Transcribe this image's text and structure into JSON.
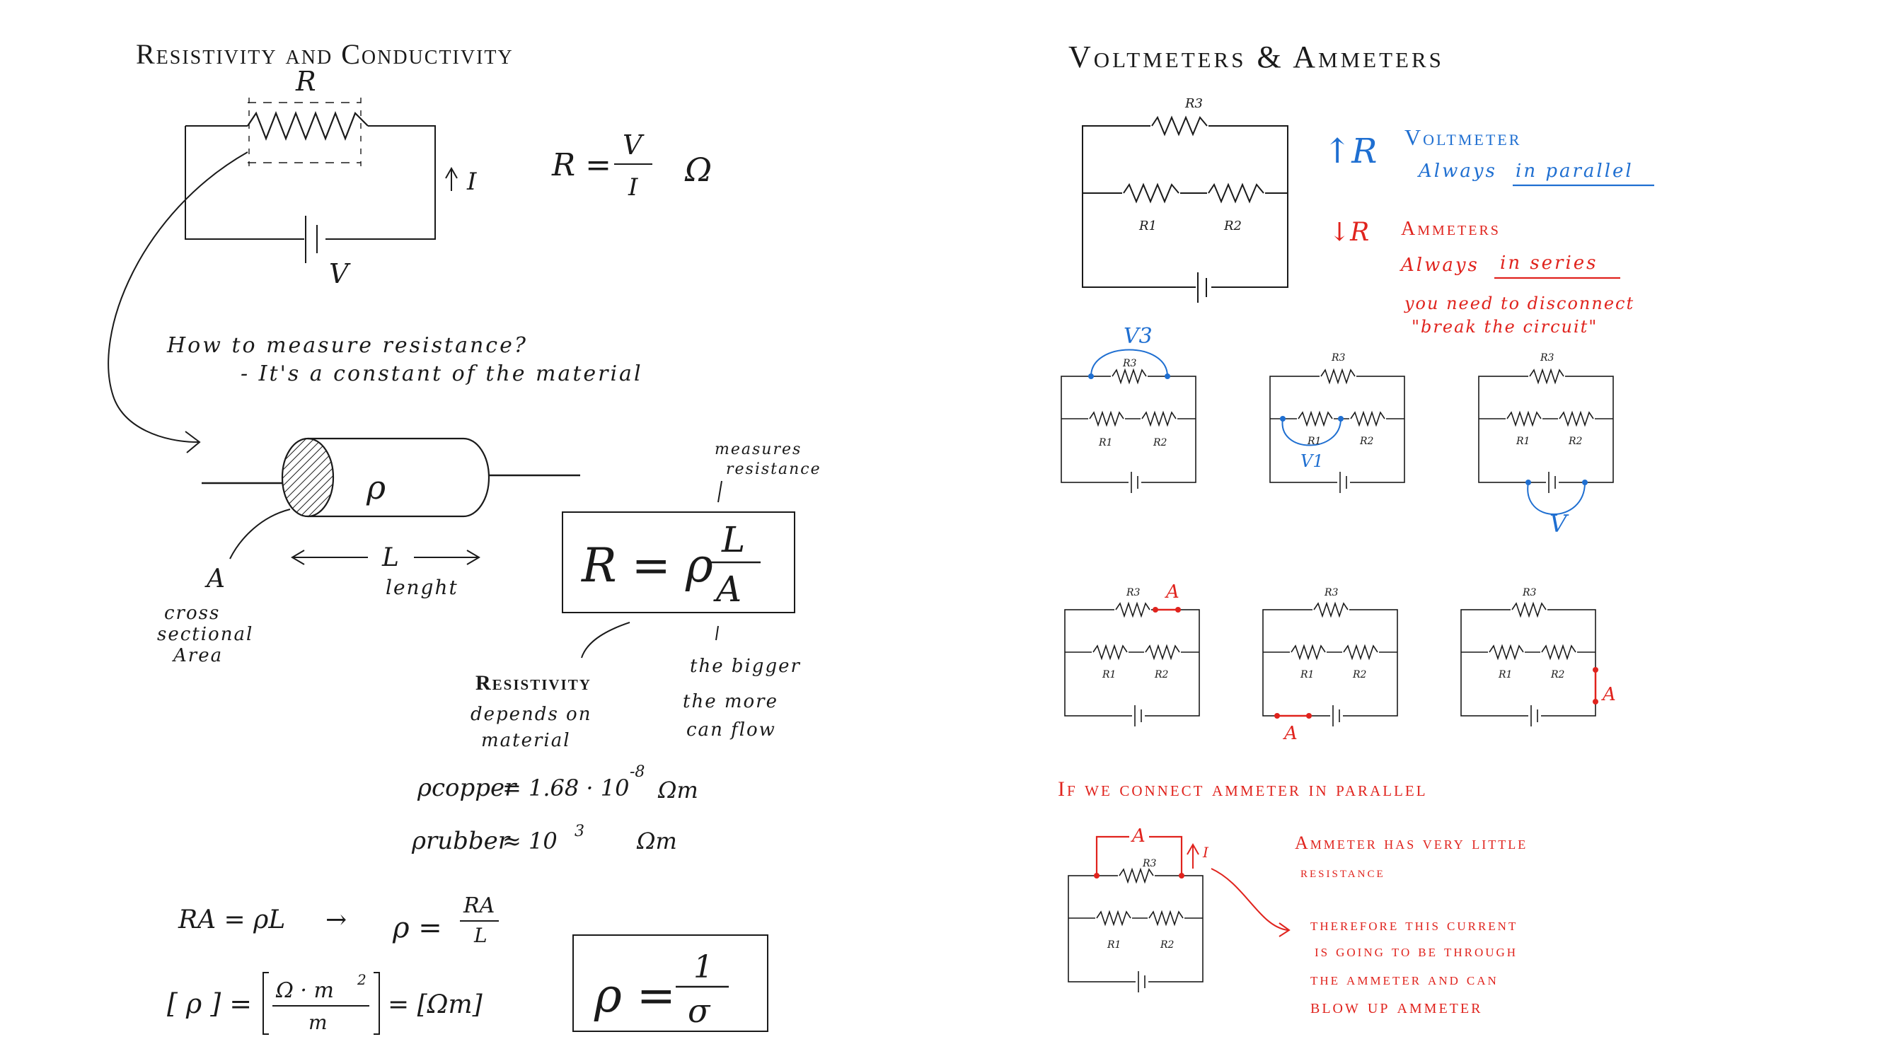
{
  "left": {
    "title": "Resistivity and Conductivity",
    "circuit": {
      "resistor_label": "R",
      "current_label": "I",
      "voltage_label": "V"
    },
    "ohm": {
      "lhs": "R =",
      "num": "V",
      "den": "I",
      "unit": "Ω"
    },
    "question": "How to measure resistance?",
    "answer": "- It's a constant of the material",
    "cylinder": {
      "rho": "ρ",
      "area_label": "A",
      "area_caption_1": "cross",
      "area_caption_2": "sectional",
      "area_caption_3": "Area",
      "length_label": "L",
      "length_caption": "lenght"
    },
    "boxed_formula": {
      "lhs": "R = ρ",
      "num": "L",
      "den": "A",
      "note_1": "measures",
      "note_2": "resistance"
    },
    "resistivity_note": {
      "head": "Resistivity",
      "line1": "depends on",
      "line2": "material"
    },
    "bigger_note": {
      "line1": "the bigger",
      "line2": "the more",
      "line3": "can flow"
    },
    "copper": {
      "label": "ρcopper",
      "value": "= 1.68 · 10",
      "exp": "-8",
      "unit": "Ωm"
    },
    "rubber": {
      "label": "ρrubber",
      "value": "≈ 10",
      "exp": "3",
      "unit": "Ωm"
    },
    "deriv": {
      "line1a": "RA = ρL",
      "arrow": "→",
      "line1b": "ρ =",
      "line1b_num": "RA",
      "line1b_den": "L"
    },
    "units": {
      "lhs": "[ ρ ] =",
      "num": "Ω · m",
      "num_exp": "2",
      "den": "m",
      "rhs": "= [Ωm]"
    },
    "conductivity": {
      "lhs": "ρ =",
      "num": "1",
      "den": "σ"
    }
  },
  "right": {
    "title": "Voltmeters & Ammeters",
    "main_circuit": {
      "r3": "R3",
      "r1": "R1",
      "r2": "R2"
    },
    "voltmeter": {
      "symbol": "↑R",
      "head": "Voltmeter",
      "line": "Always",
      "underlined": "in parallel"
    },
    "ammeter": {
      "symbol": "↓R",
      "head": "Ammeters",
      "line": "Always",
      "underlined": "in series",
      "note1": "you need to disconnect",
      "note2": "\"break the circuit\""
    },
    "small_labels": {
      "r3": "R3",
      "r1": "R1",
      "r2": "R2"
    },
    "probe_labels": {
      "v3": "V3",
      "v1": "V1",
      "v": "V",
      "a": "A"
    },
    "parallel_warning": {
      "head": "If we connect ammeter in parallel",
      "line1": "Ammeter has very little",
      "line2": "resistance",
      "line3": "therefore this current",
      "line4": "is going to be through",
      "line5": "the ammeter and can",
      "line6": "blow up ammeter",
      "i_label": "I",
      "a_label": "A"
    }
  },
  "colors": {
    "ink": "#1a1a1a",
    "blue": "#1f6fd1",
    "red": "#e0231d"
  }
}
